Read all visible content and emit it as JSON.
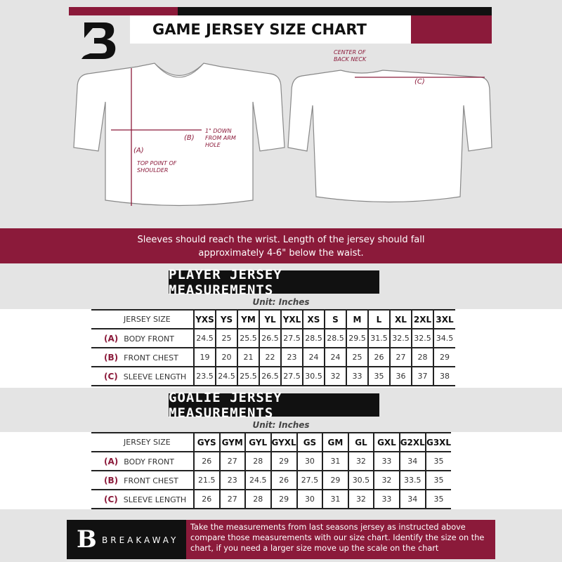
{
  "colors": {
    "accent": "#8b1a3a",
    "dark": "#111111",
    "background": "#e4e4e4"
  },
  "header": {
    "title": "GAME JERSEY SIZE CHART",
    "logo_letter": "B"
  },
  "diagram": {
    "center_back_neck": "CENTER OF BACK NECK",
    "label_a": "(A)",
    "label_b": "(B)",
    "label_c": "(C)",
    "top_point": "TOP POINT OF SHOULDER",
    "one_inch_down": "1\" DOWN FROM ARM HOLE"
  },
  "banner": {
    "text": "Sleeves should reach the wrist. Length of the jersey should fall approximately 4-6\" below the waist."
  },
  "player": {
    "heading": "PLAYER JERSEY MEASUREMENTS",
    "unit": "Unit: Inches",
    "size_label": "JERSEY SIZE",
    "sizes": [
      "YXS",
      "YS",
      "YM",
      "YL",
      "YXL",
      "XS",
      "S",
      "M",
      "L",
      "XL",
      "2XL",
      "3XL"
    ],
    "rows": [
      {
        "letter": "(A)",
        "label": "BODY FRONT",
        "values": [
          "24.5",
          "25",
          "25.5",
          "26.5",
          "27.5",
          "28.5",
          "28.5",
          "29.5",
          "31.5",
          "32.5",
          "32.5",
          "34.5"
        ]
      },
      {
        "letter": "(B)",
        "label": "FRONT CHEST",
        "values": [
          "19",
          "20",
          "21",
          "22",
          "23",
          "24",
          "24",
          "25",
          "26",
          "27",
          "28",
          "29"
        ]
      },
      {
        "letter": "(C)",
        "label": "SLEEVE LENGTH",
        "values": [
          "23.5",
          "24.5",
          "25.5",
          "26.5",
          "27.5",
          "30.5",
          "32",
          "33",
          "35",
          "36",
          "37",
          "38"
        ]
      }
    ]
  },
  "goalie": {
    "heading": "GOALIE JERSEY MEASUREMENTS",
    "unit": "Unit: Inches",
    "size_label": "JERSEY SIZE",
    "sizes": [
      "GYS",
      "GYM",
      "GYL",
      "GYXL",
      "GS",
      "GM",
      "GL",
      "GXL",
      "G2XL",
      "G3XL"
    ],
    "rows": [
      {
        "letter": "(A)",
        "label": "BODY FRONT",
        "values": [
          "26",
          "27",
          "28",
          "29",
          "30",
          "31",
          "32",
          "33",
          "34",
          "35"
        ]
      },
      {
        "letter": "(B)",
        "label": "FRONT CHEST",
        "values": [
          "21.5",
          "23",
          "24.5",
          "26",
          "27.5",
          "29",
          "30.5",
          "32",
          "33.5",
          "35"
        ]
      },
      {
        "letter": "(C)",
        "label": "SLEEVE LENGTH",
        "values": [
          "26",
          "27",
          "28",
          "29",
          "30",
          "31",
          "32",
          "33",
          "34",
          "35"
        ]
      }
    ]
  },
  "footer": {
    "brand": "BREAKAWAY",
    "text": "Take the measurements from last seasons jersey as instructed above compare those measurements  with our size chart. Identify the size on the chart, if you need a larger size move up the scale on the chart"
  }
}
